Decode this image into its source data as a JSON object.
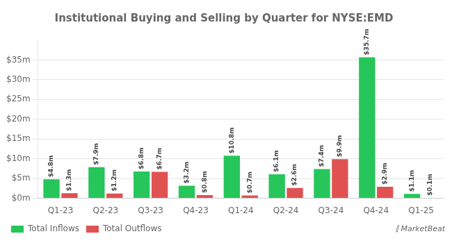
{
  "chart_data": {
    "type": "bar",
    "title": "Institutional Buying and Selling by Quarter for NYSE:EMD",
    "categories": [
      "Q1-23",
      "Q2-23",
      "Q3-23",
      "Q4-23",
      "Q1-24",
      "Q2-24",
      "Q3-24",
      "Q4-24",
      "Q1-25"
    ],
    "series": [
      {
        "name": "Total Inflows",
        "color": "#26c65a",
        "values": [
          4.8,
          7.9,
          6.8,
          3.2,
          10.8,
          6.1,
          7.4,
          35.7,
          1.1
        ],
        "value_labels": [
          "$4.8m",
          "$7.9m",
          "$6.8m",
          "$3.2m",
          "$10.8m",
          "$6.1m",
          "$7.4m",
          "$35.7m",
          "$1.1m"
        ]
      },
      {
        "name": "Total Outflows",
        "color": "#e05252",
        "values": [
          1.3,
          1.2,
          6.7,
          0.8,
          0.7,
          2.6,
          9.9,
          2.9,
          0.1
        ],
        "value_labels": [
          "$1.3m",
          "$1.2m",
          "$6.7m",
          "$0.8m",
          "$0.7m",
          "$2.6m",
          "$9.9m",
          "$2.9m",
          "$0.1m"
        ]
      }
    ],
    "ylim": [
      0,
      40
    ],
    "yticks": [
      {
        "value": 0,
        "label": "$0m"
      },
      {
        "value": 5,
        "label": "$5m"
      },
      {
        "value": 10,
        "label": "$10m"
      },
      {
        "value": 15,
        "label": "$15m"
      },
      {
        "value": 20,
        "label": "$20m"
      },
      {
        "value": 25,
        "label": "$25m"
      },
      {
        "value": 30,
        "label": "$30m"
      },
      {
        "value": 35,
        "label": "$35m"
      }
    ],
    "grid": true,
    "legend": "bottom left",
    "data_labels": true,
    "annotation": "⫿ MarketBeat"
  }
}
